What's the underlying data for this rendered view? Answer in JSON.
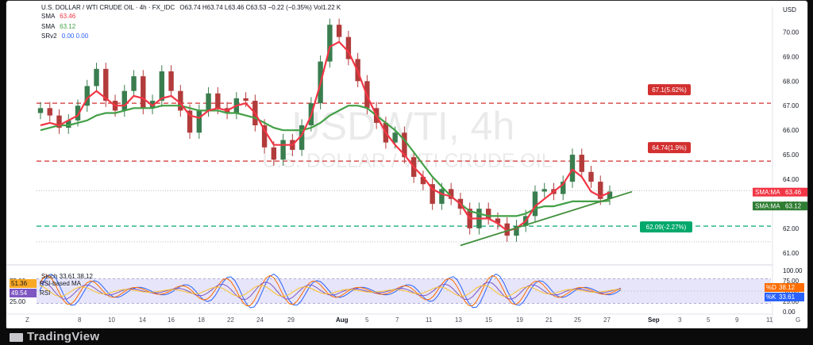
{
  "header": {
    "symbol": "U.S. DOLLAR / WTI CRUDE OIL · 4h · FX_IDC",
    "ohlc": "O63.74 H63.74 L63.46 C63.53 −0.22 (−0.35%) Vol1.22 K",
    "change_color": "#f23645",
    "currency": "USD",
    "sma1_label": "SMA",
    "sma1_value": "63.46",
    "sma2_label": "SMA",
    "sma2_value": "63.12",
    "srv_label": "SRv2",
    "srv_value": "0.00  0.00"
  },
  "watermark": {
    "title": "USDWTI, 4h",
    "subtitle": "U.S. DOLLAR / WTI CRUDE OIL"
  },
  "colors": {
    "up": "#26a69a",
    "down": "#ef5350",
    "candle_up": "#3a7d4f",
    "candle_down": "#b23b3b",
    "sma_fast": "#f23645",
    "sma_slow": "#43a047",
    "level_red": "#d32f2f",
    "level_green": "#00a86b",
    "trendline": "#3f8f3a",
    "rsi": "#2962ff",
    "stoch_k": "#2962ff",
    "stoch_d": "#ff6d00",
    "band_fill": "#e1dff7"
  },
  "chart_data": [
    {
      "type": "line",
      "title": "USDWTI, 4h",
      "ylabel": "USD",
      "ylim": [
        60.8,
        70.5
      ],
      "y_ticks": [
        "70.00",
        "69.00",
        "68.00",
        "67.00",
        "66.00",
        "65.00",
        "64.00",
        "63.00",
        "62.00",
        "61.00"
      ],
      "x_ticks": [
        "Z",
        "8",
        "10",
        "14",
        "16",
        "18",
        "22",
        "24",
        "29",
        "Aug",
        "5",
        "7",
        "11",
        "13",
        "15",
        "19",
        "21",
        "25",
        "27",
        "Sep",
        "3",
        "5",
        "9",
        "11",
        "G"
      ],
      "series": [
        {
          "name": "price",
          "values": [
            66.9,
            66.6,
            66.1,
            66.4,
            67.0,
            67.8,
            68.5,
            67.2,
            66.8,
            67.6,
            68.2,
            66.9,
            67.2,
            68.4,
            67.6,
            66.8,
            65.9,
            66.8,
            67.5,
            66.9,
            66.7,
            67.3,
            67.2,
            66.2,
            65.3,
            64.8,
            65.6,
            65.2,
            66.2,
            67.1,
            68.8,
            70.3,
            69.8,
            68.9,
            68.0,
            66.9,
            66.3,
            65.5,
            65.9,
            64.9,
            64.1,
            63.8,
            63.0,
            63.6,
            63.2,
            62.8,
            62.0,
            62.8,
            62.4,
            62.2,
            61.7,
            62.1,
            62.5,
            63.5,
            63.6,
            63.4,
            63.9,
            65.0,
            64.3,
            63.9,
            63.2,
            63.5
          ]
        },
        {
          "name": "SMA",
          "values": [
            66.2,
            66.3,
            66.2,
            66.4,
            66.6,
            67.3,
            67.6,
            67.3,
            67.0,
            67.0,
            67.4,
            67.3,
            67.0,
            67.3,
            67.4,
            67.1,
            66.6,
            66.5,
            66.8,
            66.9,
            66.8,
            67.0,
            67.1,
            66.7,
            66.0,
            65.4,
            65.4,
            65.4,
            65.8,
            66.6,
            67.9,
            69.4,
            69.6,
            69.2,
            68.4,
            67.4,
            66.6,
            65.9,
            65.4,
            65.0,
            64.5,
            64.1,
            63.6,
            63.4,
            63.3,
            63.0,
            62.4,
            62.4,
            62.4,
            62.2,
            61.9,
            62.0,
            62.3,
            62.9,
            63.2,
            63.5,
            63.8,
            64.4,
            64.1,
            63.5,
            63.3,
            63.46
          ]
        },
        {
          "name": "SMA",
          "values": [
            66.0,
            66.1,
            66.2,
            66.2,
            66.3,
            66.4,
            66.6,
            66.7,
            66.7,
            66.8,
            66.9,
            66.9,
            66.9,
            67.0,
            67.0,
            67.0,
            66.9,
            66.8,
            66.8,
            66.8,
            66.7,
            66.7,
            66.6,
            66.5,
            66.3,
            66.1,
            66.0,
            66.0,
            66.0,
            66.1,
            66.3,
            66.6,
            66.8,
            67.0,
            67.0,
            66.9,
            66.6,
            66.3,
            66.0,
            65.6,
            65.1,
            64.6,
            64.1,
            63.7,
            63.3,
            63.0,
            62.7,
            62.6,
            62.5,
            62.5,
            62.5,
            62.5,
            62.6,
            62.8,
            62.9,
            62.9,
            63.0,
            63.1,
            63.1,
            63.1,
            63.1,
            63.12
          ]
        }
      ],
      "levels": [
        {
          "label": "67.1(5.62%)",
          "value": 67.1,
          "color": "red"
        },
        {
          "label": "64.74(1.9%)",
          "value": 64.74,
          "color": "red"
        },
        {
          "label": "62.09(-2.27%)",
          "value": 62.09,
          "color": "green"
        }
      ],
      "price_tags": [
        {
          "label": "SMA:MA",
          "value": "63.46",
          "color": "#f23645"
        },
        {
          "label": "SMA:MA",
          "value": "63.12",
          "color": "#2e7d32"
        }
      ],
      "trendline": {
        "from": [
          45,
          61.3
        ],
        "to": [
          61,
          63.3
        ]
      }
    },
    {
      "type": "line",
      "title": "Stoch / RSI",
      "ylim": [
        0,
        100
      ],
      "y_ticks": [
        "100.00",
        "75.00",
        "50.00",
        "25.00",
        "0.00"
      ],
      "left_ticks": [
        "75.00",
        "25.00"
      ],
      "legend": [
        {
          "label": "Stoch",
          "values": "33.61  38.12"
        },
        {
          "label": "RSI-based MA",
          "value": "51.36"
        },
        {
          "label": "RSI",
          "value": "49.54"
        }
      ],
      "tags": [
        {
          "label": "%D",
          "value": "38.12",
          "color": "#ff6d00"
        },
        {
          "label": "%K",
          "value": "33.61",
          "color": "#2962ff"
        }
      ]
    }
  ],
  "footer": {
    "brand": "TradingView"
  }
}
